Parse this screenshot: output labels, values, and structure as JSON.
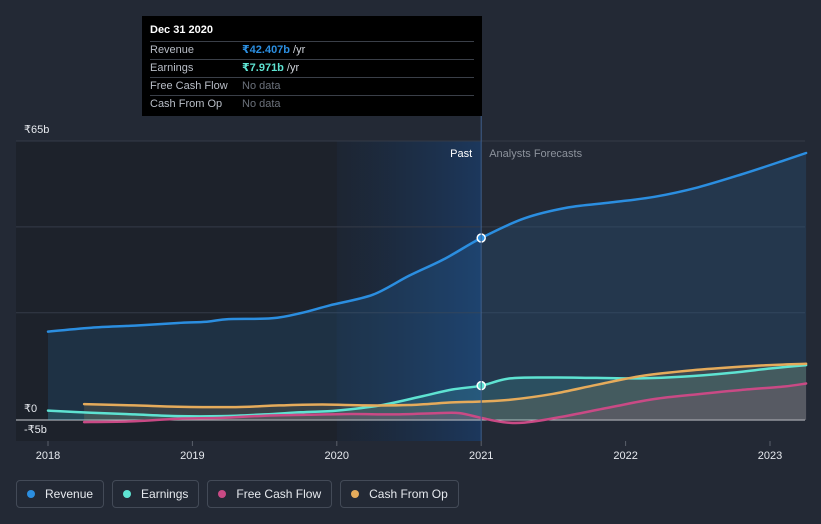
{
  "tooltip": {
    "date": "Dec 31 2020",
    "rows": [
      {
        "label": "Revenue",
        "value": "₹42.407b",
        "unit": "/yr"
      },
      {
        "label": "Earnings",
        "value": "₹7.971b",
        "unit": "/yr"
      },
      {
        "label": "Free Cash Flow",
        "value": "No data",
        "unit": ""
      },
      {
        "label": "Cash From Op",
        "value": "No data",
        "unit": ""
      }
    ]
  },
  "legend": [
    {
      "label": "Revenue",
      "color": "#2b8ee0"
    },
    {
      "label": "Earnings",
      "color": "#5ee3d2"
    },
    {
      "label": "Free Cash Flow",
      "color": "#c94a85"
    },
    {
      "label": "Cash From Op",
      "color": "#e5ab5b"
    }
  ],
  "chart_data": {
    "type": "line",
    "title": "",
    "xlabel": "",
    "ylabel": "",
    "ylim": [
      -5,
      65
    ],
    "xlim": [
      2018,
      2023.25
    ],
    "x_ticks": [
      "2018",
      "2019",
      "2020",
      "2021",
      "2022",
      "2023"
    ],
    "y_tick_labels": [
      "₹65b",
      "₹0",
      "-₹5b"
    ],
    "y_tick_values": [
      65,
      0,
      -5
    ],
    "divider_x": 2021,
    "past_label": "Past",
    "forecast_label": "Analysts Forecasts",
    "past_shading_start_x": 2020,
    "series": [
      {
        "name": "Revenue",
        "color": "#2b8ee0",
        "area": true,
        "points": [
          [
            2018,
            20.6
          ],
          [
            2018.3,
            21.5
          ],
          [
            2018.6,
            22.0
          ],
          [
            2018.9,
            22.6
          ],
          [
            2019.1,
            22.9
          ],
          [
            2019.25,
            23.5
          ],
          [
            2019.55,
            23.7
          ],
          [
            2019.75,
            24.9
          ],
          [
            2019.95,
            26.7
          ],
          [
            2020.25,
            29.2
          ],
          [
            2020.5,
            33.6
          ],
          [
            2020.75,
            37.6
          ],
          [
            2021,
            42.4
          ],
          [
            2021.3,
            47.0
          ],
          [
            2021.6,
            49.5
          ],
          [
            2021.9,
            50.7
          ],
          [
            2022.2,
            52.0
          ],
          [
            2022.5,
            54.2
          ],
          [
            2022.8,
            57.2
          ],
          [
            2023.1,
            60.5
          ],
          [
            2023.25,
            62.2
          ]
        ],
        "marker_x": 2021
      },
      {
        "name": "Earnings",
        "color": "#5ee3d2",
        "area": true,
        "points": [
          [
            2018,
            2.2
          ],
          [
            2018.3,
            1.7
          ],
          [
            2018.6,
            1.3
          ],
          [
            2018.9,
            0.9
          ],
          [
            2019.2,
            0.9
          ],
          [
            2019.5,
            1.3
          ],
          [
            2019.75,
            1.8
          ],
          [
            2020,
            2.2
          ],
          [
            2020.3,
            3.4
          ],
          [
            2020.6,
            5.6
          ],
          [
            2020.8,
            7.1
          ],
          [
            2021,
            8.0
          ],
          [
            2021.2,
            9.7
          ],
          [
            2021.5,
            9.9
          ],
          [
            2021.8,
            9.8
          ],
          [
            2022.1,
            9.7
          ],
          [
            2022.4,
            10.1
          ],
          [
            2022.7,
            10.9
          ],
          [
            2023,
            12.0
          ],
          [
            2023.25,
            12.8
          ]
        ],
        "marker_x": 2021
      },
      {
        "name": "Free Cash Flow",
        "color": "#c94a85",
        "area": true,
        "points": [
          [
            2018.25,
            -0.5
          ],
          [
            2018.6,
            -0.3
          ],
          [
            2018.9,
            0.3
          ],
          [
            2019.2,
            0.5
          ],
          [
            2019.5,
            1.0
          ],
          [
            2019.8,
            1.2
          ],
          [
            2020.1,
            1.4
          ],
          [
            2020.4,
            1.3
          ],
          [
            2020.7,
            1.6
          ],
          [
            2020.85,
            1.6
          ],
          [
            2021,
            0.5
          ],
          [
            2021.15,
            -0.5
          ],
          [
            2021.3,
            -0.6
          ],
          [
            2021.55,
            0.7
          ],
          [
            2021.9,
            3.0
          ],
          [
            2022.2,
            4.9
          ],
          [
            2022.5,
            6.0
          ],
          [
            2022.8,
            7.0
          ],
          [
            2023.1,
            7.8
          ],
          [
            2023.25,
            8.5
          ]
        ]
      },
      {
        "name": "Cash From Op",
        "color": "#e5ab5b",
        "area": true,
        "points": [
          [
            2018.25,
            3.7
          ],
          [
            2018.6,
            3.4
          ],
          [
            2018.9,
            3.1
          ],
          [
            2019.3,
            3.0
          ],
          [
            2019.6,
            3.4
          ],
          [
            2019.9,
            3.6
          ],
          [
            2020.2,
            3.4
          ],
          [
            2020.5,
            3.5
          ],
          [
            2020.8,
            4.1
          ],
          [
            2021,
            4.3
          ],
          [
            2021.2,
            4.7
          ],
          [
            2021.5,
            6.1
          ],
          [
            2021.8,
            8.2
          ],
          [
            2022.1,
            10.2
          ],
          [
            2022.4,
            11.4
          ],
          [
            2022.7,
            12.2
          ],
          [
            2023,
            12.8
          ],
          [
            2023.25,
            13.1
          ]
        ]
      }
    ]
  }
}
